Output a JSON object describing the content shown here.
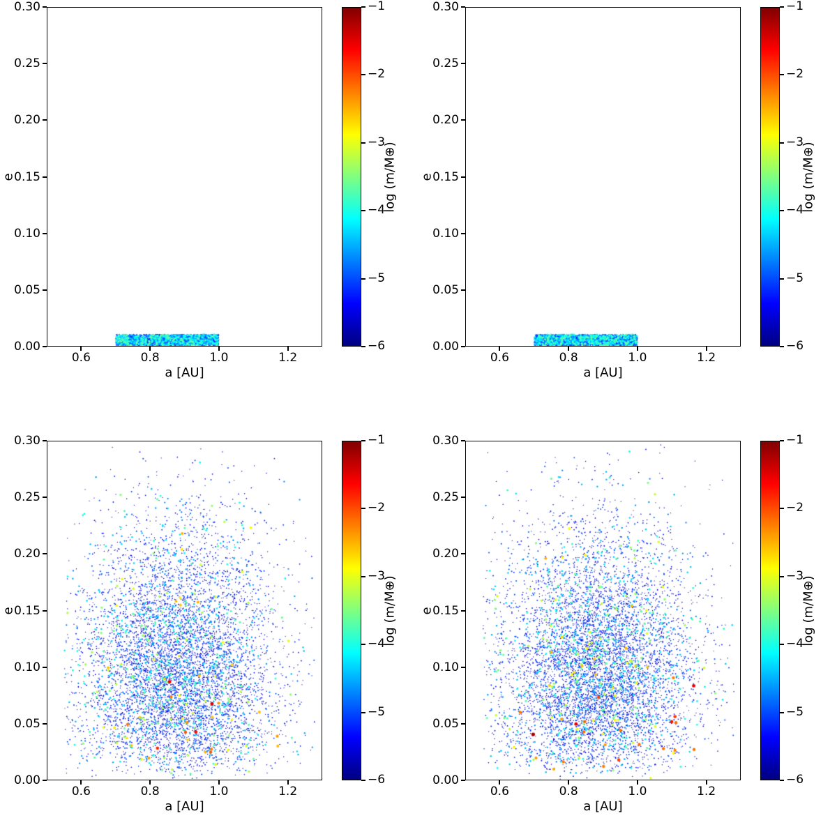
{
  "figure": {
    "rows": 2,
    "cols": 2,
    "background": "#ffffff",
    "text_color": "#000000"
  },
  "axis": {
    "x": {
      "label": "a [AU]",
      "min": 0.5,
      "max": 1.3,
      "ticks": [
        0.6,
        0.8,
        1.0,
        1.2
      ],
      "tick_labels": [
        "0.6",
        "0.8",
        "1.0",
        "1.2"
      ]
    },
    "y": {
      "label": "e",
      "min": 0.0,
      "max": 0.3,
      "ticks": [
        0.3,
        0.25,
        0.2,
        0.15,
        0.1,
        0.05,
        0.0
      ],
      "tick_labels": [
        "0.30",
        "0.25",
        "0.20",
        "0.15",
        "0.10",
        "0.05",
        "0.00"
      ]
    }
  },
  "colorbar": {
    "label": "log (m/M⊕)",
    "min": -6,
    "max": -1,
    "ticks": [
      -1,
      -2,
      -3,
      -4,
      -5,
      -6
    ],
    "tick_labels": [
      "−1",
      "−2",
      "−3",
      "−4",
      "−5",
      "−6"
    ],
    "colormap": "jet"
  },
  "chart_data": [
    {
      "panel": "top-left",
      "type": "scatter",
      "xlabel": "a [AU]",
      "ylabel": "e",
      "xlim": [
        0.5,
        1.3
      ],
      "ylim": [
        0.0,
        0.3
      ],
      "color_label": "log (m/M⊕)",
      "color_lim": [
        -6,
        -1
      ],
      "colormap": "jet",
      "grid": false,
      "distribution": {
        "kind": "initial-band",
        "n_points": 2600,
        "seed": 101,
        "a_range": [
          0.7,
          1.0
        ],
        "e_range": [
          0.0,
          0.01
        ],
        "logm_floor": -5.5,
        "logm_cap": -3.6,
        "logm_lambda": 1.5
      }
    },
    {
      "panel": "top-right",
      "type": "scatter",
      "xlabel": "a [AU]",
      "ylabel": "e",
      "xlim": [
        0.5,
        1.3
      ],
      "ylim": [
        0.0,
        0.3
      ],
      "color_label": "log (m/M⊕)",
      "color_lim": [
        -6,
        -1
      ],
      "colormap": "jet",
      "grid": false,
      "distribution": {
        "kind": "initial-band",
        "n_points": 2600,
        "seed": 202,
        "a_range": [
          0.7,
          1.0
        ],
        "e_range": [
          0.0,
          0.01
        ],
        "logm_floor": -5.5,
        "logm_cap": -3.6,
        "logm_lambda": 1.5
      }
    },
    {
      "panel": "bottom-left",
      "type": "scatter",
      "xlabel": "a [AU]",
      "ylabel": "e",
      "xlim": [
        0.5,
        1.3
      ],
      "ylim": [
        0.0,
        0.3
      ],
      "color_label": "log (m/M⊕)",
      "color_lim": [
        -6,
        -1
      ],
      "colormap": "jet",
      "grid": false,
      "distribution": {
        "kind": "evolved-cloud",
        "n_points": 7000,
        "seed": 303,
        "a_center": 0.88,
        "a_sigma": 0.145,
        "a_range": [
          0.55,
          1.285
        ],
        "e_sigma": 0.085,
        "e_range": [
          0.0,
          0.297
        ],
        "massive_logm_threshold": -2.5,
        "massive_e_factor": 0.42,
        "logm_floor": -6.0,
        "logm_cap": -1.0,
        "logm_lambda": 1.6
      }
    },
    {
      "panel": "bottom-right",
      "type": "scatter",
      "xlabel": "a [AU]",
      "ylabel": "e",
      "xlim": [
        0.5,
        1.3
      ],
      "ylim": [
        0.0,
        0.3
      ],
      "color_label": "log (m/M⊕)",
      "color_lim": [
        -6,
        -1
      ],
      "colormap": "jet",
      "grid": false,
      "distribution": {
        "kind": "evolved-cloud",
        "n_points": 7000,
        "seed": 404,
        "a_center": 0.88,
        "a_sigma": 0.145,
        "a_range": [
          0.55,
          1.285
        ],
        "e_sigma": 0.085,
        "e_range": [
          0.0,
          0.297
        ],
        "massive_logm_threshold": -2.5,
        "massive_e_factor": 0.42,
        "logm_floor": -6.0,
        "logm_cap": -1.0,
        "logm_lambda": 1.6
      }
    }
  ]
}
